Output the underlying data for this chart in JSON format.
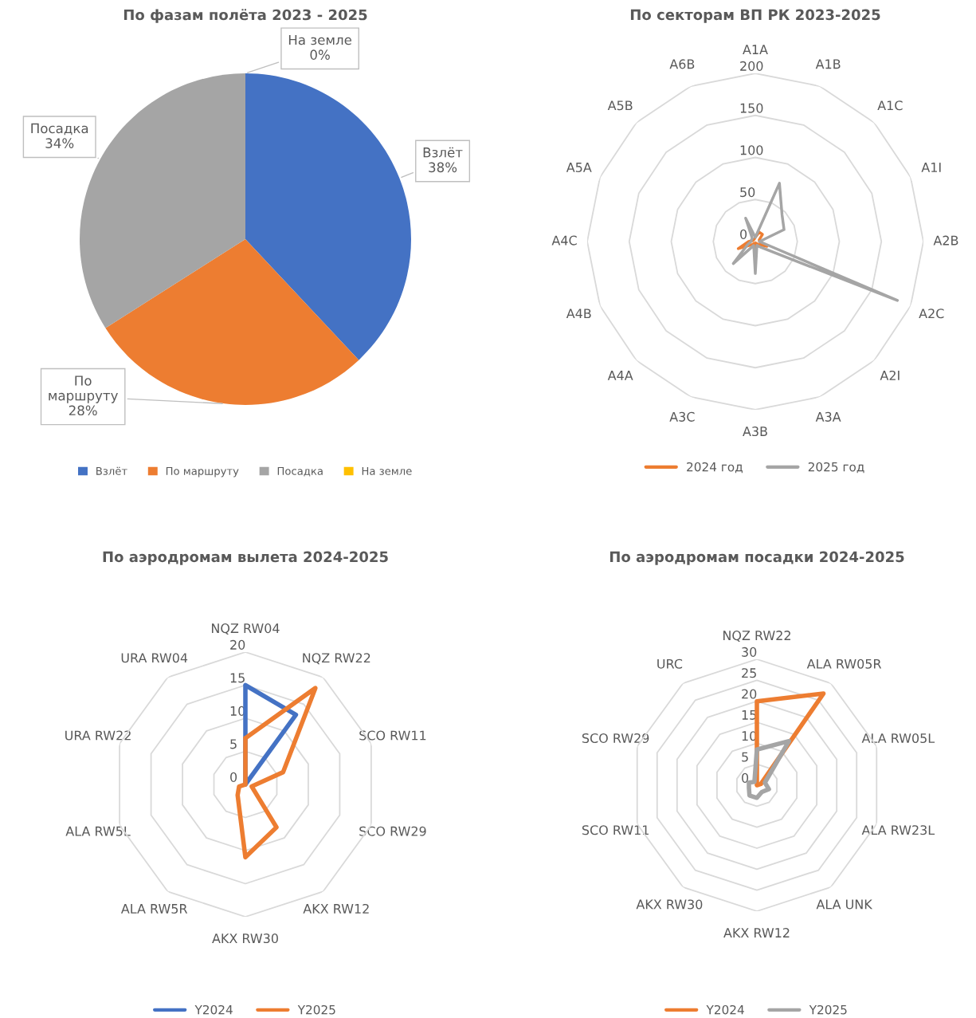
{
  "chart_data": [
    {
      "type": "pie",
      "title": "По фазам полёта 2023 - 2025",
      "categories": [
        "Взлёт",
        "По маршруту",
        "Посадка",
        "На земле"
      ],
      "values": [
        38,
        28,
        34,
        0
      ],
      "value_labels": [
        "38%",
        "28%",
        "34%",
        "0%"
      ],
      "colors": [
        "#4472c4",
        "#ed7d31",
        "#a5a5a5",
        "#ffc000"
      ],
      "legend": "bottom"
    },
    {
      "type": "radar",
      "title": "По секторам ВП РК 2023-2025",
      "categories": [
        "A1A",
        "A1B",
        "A1C",
        "A1I",
        "A2B",
        "A2C",
        "A2I",
        "A3A",
        "A3B",
        "A3C",
        "A4A",
        "A4B",
        "A4C",
        "A5A",
        "A5B",
        "A6B"
      ],
      "ylim": [
        0,
        200
      ],
      "yticks": [
        0,
        50,
        100,
        150,
        200
      ],
      "grid": true,
      "legend": "bottom",
      "series": [
        {
          "name": "2024 год",
          "color": "#ed7d31",
          "values": [
            5,
            12,
            12,
            5,
            5,
            15,
            5,
            2,
            20,
            2,
            5,
            22,
            8,
            3,
            3,
            3
          ]
        },
        {
          "name": "2025 год",
          "color": "#a5a5a5",
          "values": [
            5,
            75,
            45,
            37,
            5,
            183,
            10,
            5,
            38,
            5,
            37,
            10,
            5,
            5,
            5,
            30
          ]
        }
      ]
    },
    {
      "type": "radar",
      "title": "По аэродромам вылета 2024-2025",
      "categories": [
        "NQZ RW04",
        "NQZ RW22",
        "SCO RW11",
        "SCO RW29",
        "AKX RW12",
        "AKX RW30",
        "ALA RW5R",
        "ALA RW5L",
        "URA RW22",
        "URA RW04"
      ],
      "ylim": [
        0,
        20
      ],
      "yticks": [
        0,
        5,
        10,
        15,
        20
      ],
      "grid": true,
      "legend": "bottom",
      "series": [
        {
          "name": "Y2024",
          "color": "#4472c4",
          "values": [
            15,
            13,
            0,
            0,
            0,
            0,
            0,
            0,
            0,
            0
          ]
        },
        {
          "name": "Y2025",
          "color": "#ed7d31",
          "values": [
            7,
            18,
            6,
            1,
            8,
            11,
            2,
            1,
            0,
            0
          ]
        }
      ]
    },
    {
      "type": "radar",
      "title": "По аэродромам посадки 2024-2025",
      "categories": [
        "NQZ RW22",
        "ALA RW05R",
        "ALA RW05L",
        "ALA RW23L",
        "ALA UNK",
        "AKX RW12",
        "AKX RW30",
        "SCO RW11",
        "SCO RW29",
        "URC"
      ],
      "ylim": [
        0,
        30
      ],
      "yticks": [
        0,
        5,
        10,
        15,
        20,
        25,
        30
      ],
      "grid": true,
      "legend": "bottom",
      "series": [
        {
          "name": "Y2024",
          "color": "#ed7d31",
          "values": [
            20,
            27,
            1,
            0,
            0,
            0,
            0,
            0,
            0,
            0
          ]
        },
        {
          "name": "Y2025",
          "color": "#a5a5a5",
          "values": [
            8.5,
            13,
            2,
            3,
            2,
            3,
            3,
            2,
            2,
            1
          ]
        }
      ]
    }
  ]
}
